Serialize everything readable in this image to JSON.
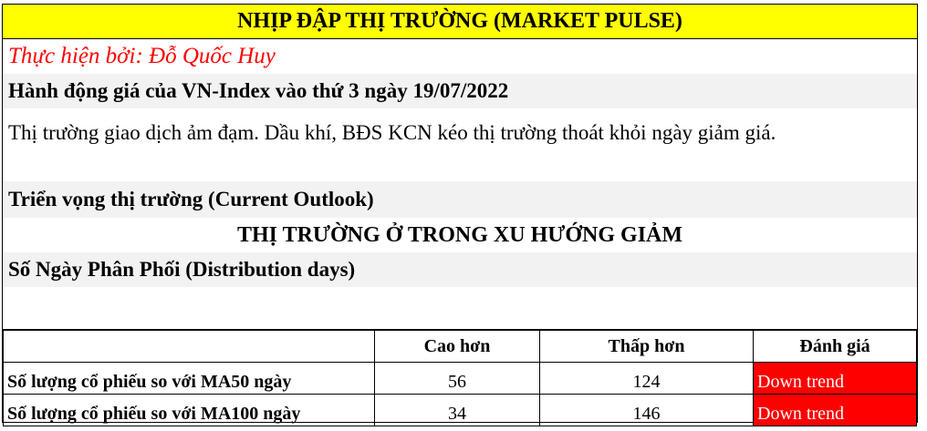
{
  "title": "NHỊP ĐẬP THỊ TRƯỜNG (MARKET PULSE)",
  "author": "Thực hiện bởi: Đỗ Quốc Huy",
  "price_action_heading": "Hành động giá của VN-Index vào thứ 3 ngày 19/07/2022",
  "price_action_text": "Thị trường giao dịch ảm đạm. Dầu khí, BĐS KCN kéo thị trường thoát khỏi ngày giảm giá.",
  "outlook_heading": "Triển vọng thị trường (Current Outlook)",
  "outlook_value": "THỊ TRƯỜNG Ở TRONG XU HƯỚNG GIẢM",
  "distribution_heading": "Số Ngày Phân Phối (Distribution days)",
  "colors": {
    "title_bg": "#ffff00",
    "author": "#ff0000",
    "down_trend_bg": "#ff0000"
  },
  "table": {
    "headers": [
      "",
      "Cao hơn",
      "Thấp hơn",
      "Đánh giá"
    ],
    "rows": [
      {
        "label": "Số lượng cổ phiếu so với MA50 ngày",
        "above": "56",
        "below": "124",
        "rating": "Down trend"
      },
      {
        "label": "Số lượng cổ phiếu so với MA100 ngày",
        "above": "34",
        "below": "146",
        "rating": "Down trend"
      }
    ]
  }
}
